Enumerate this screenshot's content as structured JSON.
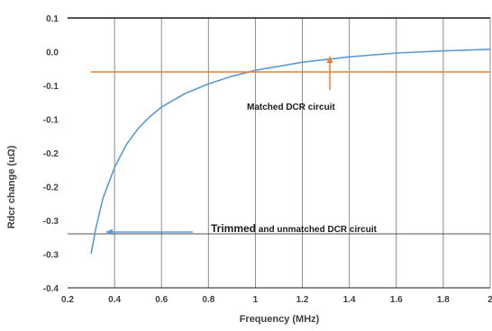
{
  "chart_data": {
    "type": "line",
    "title": "",
    "xlabel": "Frequency (MHz)",
    "ylabel": "Rdcr change (uΩ)",
    "x_tick_labels": [
      "0.2",
      "0.4",
      "0.6",
      "0.8",
      "1",
      "1.2",
      "1.4",
      "1.6",
      "1.8",
      "2"
    ],
    "y_tick_labels": [
      "0.1",
      "0.0",
      "-0.1",
      "-0.1",
      "-0.2",
      "-0.2",
      "-0.3",
      "-0.3",
      "-0.4"
    ],
    "xlim": [
      0.2,
      2.0
    ],
    "ylim": [
      -0.4,
      0.1
    ],
    "grid": "vertical",
    "series": [
      {
        "color": "#5b9bd5",
        "x": [
          0.3,
          0.32,
          0.35,
          0.4,
          0.45,
          0.5,
          0.55,
          0.6,
          0.7,
          0.8,
          0.9,
          1.0,
          1.2,
          1.4,
          1.6,
          1.8,
          2.0
        ],
        "y": [
          -0.337,
          -0.29,
          -0.235,
          -0.177,
          -0.135,
          -0.105,
          -0.083,
          -0.065,
          -0.04,
          -0.022,
          -0.008,
          0.003,
          0.018,
          0.028,
          0.035,
          0.039,
          0.042
        ]
      },
      {
        "color": "#ed7d31",
        "x": [
          0.3,
          2.0
        ],
        "y": [
          0.0,
          0.0
        ]
      }
    ],
    "annotations": [
      {
        "text": "Matched DCR circuit",
        "arrow_color": "#ed7d31",
        "arrow_direction": "up"
      },
      {
        "text_bold": "Trimmed",
        "text_rest": " and unmatched DCR circuit",
        "arrow_color": "#5b9bd5",
        "arrow_direction": "left"
      }
    ]
  }
}
